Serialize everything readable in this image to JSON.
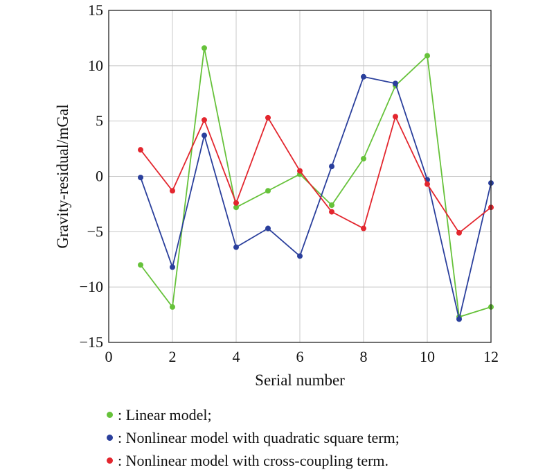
{
  "chart_data": {
    "type": "line",
    "xlabel": "Serial number",
    "ylabel": "Gravity-residual/mGal",
    "xlim": [
      0,
      12
    ],
    "ylim": [
      -15,
      15
    ],
    "xticks": [
      0,
      2,
      4,
      6,
      8,
      10,
      12
    ],
    "yticks": [
      15,
      10,
      5,
      0,
      -5,
      -10,
      -15
    ],
    "ytick_labels": [
      "15",
      "10",
      "5",
      "0",
      "−5",
      "−10",
      "−15"
    ],
    "grid": true,
    "x": [
      1,
      2,
      3,
      4,
      5,
      6,
      7,
      8,
      9,
      10,
      11,
      12
    ],
    "series": [
      {
        "key": "linear",
        "color": "#66c23a",
        "values": [
          -8.0,
          -11.8,
          11.6,
          -2.8,
          -1.3,
          0.2,
          -2.6,
          1.6,
          8.2,
          10.9,
          -12.7,
          -11.8
        ]
      },
      {
        "key": "quadratic",
        "color": "#2a3f9c",
        "values": [
          -0.1,
          -8.2,
          3.7,
          -6.4,
          -4.7,
          -7.2,
          0.9,
          9.0,
          8.4,
          -0.3,
          -12.9,
          -0.6
        ]
      },
      {
        "key": "cross",
        "color": "#e3262e",
        "values": [
          2.4,
          -1.3,
          5.1,
          -2.4,
          5.3,
          0.5,
          -3.2,
          -4.7,
          5.4,
          -0.7,
          -5.1,
          -2.8
        ]
      }
    ]
  },
  "legend": [
    {
      "color": "#66c23a",
      "label": ": Linear model;"
    },
    {
      "color": "#2a3f9c",
      "label": ": Nonlinear model with quadratic square term;"
    },
    {
      "color": "#e3262e",
      "label": ": Nonlinear model with cross-coupling term."
    }
  ]
}
